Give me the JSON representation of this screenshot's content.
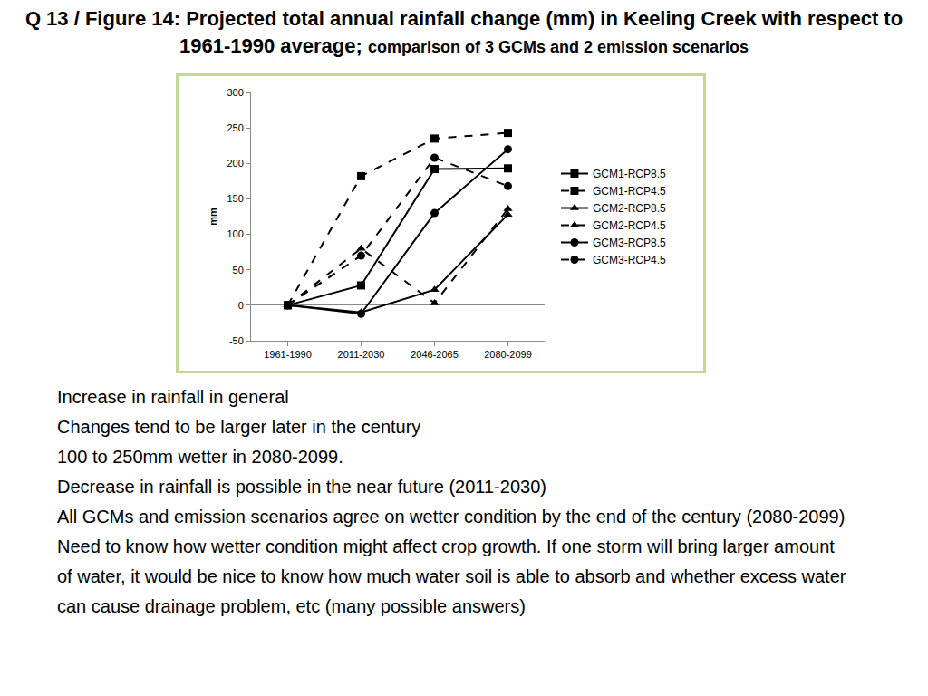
{
  "chart_data": {
    "type": "line",
    "title": "Q 13 / Figure 14: Projected total annual rainfall change (mm) in Keeling Creek with respect to 1961-1990 average;",
    "subtitle": "comparison of 3 GCMs and 2 emission scenarios",
    "y_label": "mm",
    "categories": [
      "1961-1990",
      "2011-2030",
      "2046-2065",
      "2080-2099"
    ],
    "series": [
      {
        "name": "GCM1-RCP8.5",
        "color": "#000000",
        "marker": "square",
        "line_style": "solid",
        "values": [
          0,
          28,
          192,
          193
        ]
      },
      {
        "name": "GCM1-RCP4.5",
        "color": "#000000",
        "marker": "square",
        "line_style": "dash",
        "values": [
          0,
          182,
          235,
          243
        ]
      },
      {
        "name": "GCM2-RCP8.5",
        "color": "#000000",
        "marker": "triangle-up",
        "line_style": "solid",
        "values": [
          0,
          -10,
          22,
          128
        ]
      },
      {
        "name": "GCM2-RCP4.5",
        "color": "#000000",
        "marker": "triangle-up",
        "line_style": "dash",
        "values": [
          0,
          80,
          3,
          136
        ]
      },
      {
        "name": "GCM3-RCP8.5",
        "color": "#000000",
        "marker": "circle",
        "line_style": "solid",
        "values": [
          0,
          -12,
          130,
          220
        ]
      },
      {
        "name": "GCM3-RCP4.5",
        "color": "#000000",
        "marker": "circle",
        "line_style": "dash",
        "values": [
          0,
          70,
          208,
          168
        ]
      }
    ],
    "ylim": [
      -50,
      300
    ],
    "yticks": [
      -50,
      0,
      50,
      100,
      150,
      200,
      250,
      300
    ],
    "grid": false,
    "legend": "right"
  },
  "notes": [
    "Increase in rainfall in general",
    "Changes tend to be larger later in the century",
    "100 to 250mm wetter in 2080-2099.",
    "Decrease in rainfall is possible in the near future (2011-2030)",
    "All GCMs and emission scenarios agree on wetter condition by the end of the century (2080-2099)",
    "Need to know how wetter condition might affect crop growth. If one storm will bring larger amount of water, it would be nice to know how much water soil is able to absorb and whether excess water can cause drainage problem, etc  (many possible answers)"
  ]
}
